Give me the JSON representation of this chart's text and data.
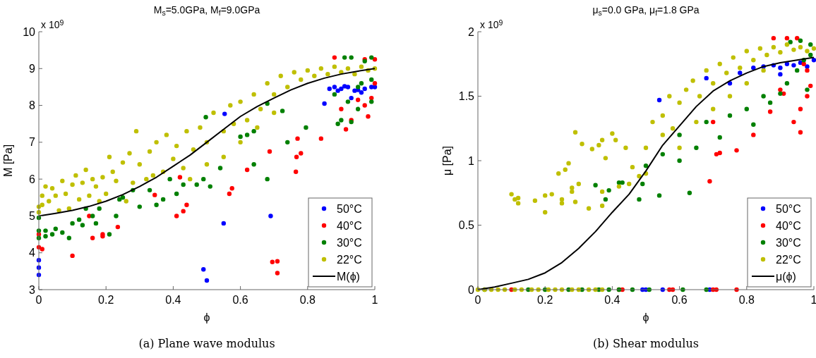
{
  "chart_data": [
    {
      "type": "scatter",
      "title": "M$_{s}$=5.0GPa, M$_{f}$=9.0GPa",
      "xlabel": "ϕ",
      "ylabel": "M [Pa]",
      "annotations": [
        "x 10$^{9}$",
        "(a) Plane wave modulus"
      ],
      "xlim": [
        0,
        1
      ],
      "ylim": [
        3,
        10
      ],
      "xticks": [
        0,
        0.2,
        0.4,
        0.6,
        0.8,
        1
      ],
      "yticks": [
        3,
        4,
        5,
        6,
        7,
        8,
        9,
        10
      ],
      "legend": "bottom right",
      "marker": "circle",
      "grid": false,
      "series": [
        {
          "name": "50°C",
          "color": "#0000ff",
          "x": [
            0,
            0,
            0,
            0.49,
            0.5,
            0.55,
            0.69,
            0.553,
            0.865,
            0.88,
            0.9,
            0.92,
            0.94,
            0.95,
            0.97,
            0.99,
            1.0,
            0.93,
            0.85,
            0.89,
            0.96,
            0.91
          ],
          "values": [
            3.4,
            3.6,
            3.8,
            3.55,
            3.25,
            4.8,
            5.0,
            7.77,
            8.45,
            8.5,
            8.45,
            8.5,
            8.4,
            8.42,
            8.45,
            8.5,
            8.5,
            8.2,
            8.05,
            8.4,
            8.35,
            8.52
          ]
        },
        {
          "name": "40°C",
          "color": "#ff0000",
          "x": [
            0,
            0,
            0.01,
            0.1,
            0.15,
            0.16,
            0.19,
            0.19,
            0.235,
            0.345,
            0.41,
            0.43,
            0.44,
            0.42,
            0.567,
            0.575,
            0.695,
            0.71,
            0.71,
            0.687,
            0.767,
            0.78,
            0.77,
            0.84,
            0.914,
            0.9,
            0.62,
            0.765,
            0.88,
            0.98,
            0.99,
            0.97,
            0.93,
            0.95,
            0.97,
            1.0,
            1.0
          ],
          "values": [
            4.5,
            4.15,
            4.1,
            3.92,
            5.0,
            4.4,
            4.5,
            4.45,
            4.7,
            5.57,
            5.0,
            5.13,
            5.3,
            6.05,
            5.6,
            5.75,
            3.75,
            3.77,
            3.45,
            6.75,
            6.6,
            6.7,
            7.1,
            7.1,
            7.35,
            7.9,
            6.25,
            6.2,
            9.3,
            7.7,
            8.2,
            8.0,
            7.6,
            8.15,
            9.25,
            9.25,
            8.6
          ]
        },
        {
          "name": "30°C",
          "color": "#008000",
          "x": [
            0,
            0,
            0,
            0.02,
            0.02,
            0.04,
            0.05,
            0.07,
            0.09,
            0.1,
            0.12,
            0.13,
            0.14,
            0.16,
            0.17,
            0.18,
            0.21,
            0.23,
            0.24,
            0.25,
            0.28,
            0.3,
            0.33,
            0.35,
            0.37,
            0.39,
            0.41,
            0.43,
            0.47,
            0.49,
            0.51,
            0.68,
            0.497,
            0.54,
            0.64,
            0.74,
            0.795,
            0.89,
            0.9,
            0.93,
            0.95,
            0.92,
            0.96,
            0.99,
            0.99,
            0.97,
            0.93,
            0.91,
            0.95,
            0.99,
            0.68,
            0.64,
            0.62,
            0.6,
            0.725,
            0.88
          ],
          "values": [
            4.95,
            4.6,
            4.4,
            4.6,
            4.45,
            4.5,
            4.65,
            4.55,
            4.4,
            4.8,
            4.9,
            4.75,
            5.2,
            5.0,
            4.8,
            5.2,
            4.5,
            5.0,
            5.45,
            5.5,
            5.7,
            5.25,
            5.7,
            5.3,
            5.45,
            6.0,
            5.6,
            5.85,
            5.85,
            6.0,
            5.8,
            6.0,
            7.68,
            6.3,
            6.4,
            7.0,
            7.4,
            7.5,
            7.6,
            7.55,
            7.9,
            8.1,
            8.6,
            8.7,
            9.3,
            9.2,
            9.3,
            9.3,
            8.5,
            8.1,
            8.05,
            7.3,
            7.2,
            7.15,
            7.85,
            8.3
          ]
        },
        {
          "name": "22°C",
          "color": "#bfbf00",
          "x": [
            0,
            0,
            0.01,
            0.01,
            0.02,
            0.03,
            0.04,
            0.05,
            0.06,
            0.07,
            0.08,
            0.09,
            0.1,
            0.11,
            0.12,
            0.13,
            0.14,
            0.15,
            0.16,
            0.17,
            0.18,
            0.19,
            0.2,
            0.21,
            0.22,
            0.23,
            0.25,
            0.26,
            0.27,
            0.28,
            0.29,
            0.3,
            0.32,
            0.33,
            0.34,
            0.35,
            0.37,
            0.38,
            0.4,
            0.41,
            0.43,
            0.44,
            0.46,
            0.48,
            0.5,
            0.52,
            0.55,
            0.57,
            0.58,
            0.6,
            0.62,
            0.64,
            0.66,
            0.68,
            0.7,
            0.72,
            0.74,
            0.76,
            0.78,
            0.8,
            0.82,
            0.84,
            0.86,
            0.88,
            0.9,
            0.92,
            0.94,
            0.96,
            0.98,
            1.0,
            0.5,
            0.45,
            0.6,
            0.65,
            0.7,
            0.55
          ],
          "values": [
            5.1,
            5.25,
            5.55,
            5.3,
            5.8,
            5.4,
            5.75,
            5.55,
            5.15,
            5.95,
            5.6,
            5.2,
            5.85,
            6.1,
            5.45,
            5.9,
            6.25,
            5.55,
            6.0,
            5.8,
            5.4,
            6.05,
            5.6,
            6.6,
            6.2,
            5.95,
            6.45,
            5.4,
            6.7,
            5.9,
            7.3,
            6.4,
            6.0,
            6.75,
            6.1,
            7.0,
            6.2,
            7.2,
            6.55,
            6.9,
            6.3,
            7.3,
            6.8,
            7.4,
            7.0,
            7.8,
            7.3,
            8.0,
            7.5,
            8.1,
            7.6,
            8.3,
            7.9,
            8.6,
            8.3,
            8.8,
            8.5,
            8.9,
            8.7,
            8.95,
            8.8,
            9.0,
            8.85,
            9.05,
            8.9,
            9.0,
            8.85,
            9.05,
            8.95,
            9.0,
            6.4,
            6.0,
            7.0,
            7.4,
            7.8,
            6.6
          ]
        },
        {
          "name": "M(ϕ)",
          "type": "line",
          "marker": "none",
          "color": "#000000",
          "x": [
            0,
            0.05,
            0.1,
            0.15,
            0.2,
            0.25,
            0.3,
            0.35,
            0.4,
            0.45,
            0.5,
            0.55,
            0.6,
            0.65,
            0.7,
            0.75,
            0.8,
            0.85,
            0.9,
            0.95,
            1
          ],
          "values": [
            5.0,
            5.07,
            5.15,
            5.26,
            5.4,
            5.58,
            5.8,
            6.05,
            6.35,
            6.65,
            7.0,
            7.35,
            7.7,
            7.97,
            8.2,
            8.42,
            8.6,
            8.74,
            8.85,
            8.93,
            9.0
          ]
        }
      ]
    },
    {
      "type": "scatter",
      "title": "μ$_{s}$=0.0 GPa, μ$_{f}$=1.8 GPa",
      "xlabel": "ϕ",
      "ylabel": "μ [Pa]",
      "annotations": [
        "x 10$^{9}$",
        "(b) Shear modulus"
      ],
      "xlim": [
        0,
        1
      ],
      "ylim": [
        0,
        2
      ],
      "xticks": [
        0,
        0.2,
        0.4,
        0.6,
        0.8,
        1
      ],
      "yticks": [
        0,
        0.5,
        1,
        1.5,
        2
      ],
      "legend": "bottom right",
      "marker": "circle",
      "grid": false,
      "series": [
        {
          "name": "50°C",
          "color": "#0000ff",
          "x": [
            0.54,
            0.68,
            0.75,
            0.78,
            0.82,
            0.85,
            0.88,
            0.9,
            0.9,
            0.92,
            0.94,
            0.96,
            0.98,
            1.0,
            0.49,
            0.5,
            0.55,
            0.69
          ],
          "values": [
            1.47,
            1.64,
            1.6,
            1.68,
            1.72,
            1.73,
            1.74,
            1.72,
            1.67,
            1.75,
            1.74,
            1.76,
            1.73,
            1.78,
            0,
            0,
            0,
            0
          ]
        },
        {
          "name": "40°C",
          "color": "#ff0000",
          "x": [
            0.69,
            0.71,
            0.72,
            0.7,
            0.77,
            0.82,
            0.87,
            0.9,
            0.91,
            0.94,
            0.96,
            0.98,
            0.99,
            0.96,
            0.98,
            0.97,
            0.92,
            0.88,
            0.95,
            0.1,
            0.42,
            0.43,
            0.57,
            0.58,
            0.7,
            0.71,
            0.77
          ],
          "values": [
            0.84,
            1.05,
            1.06,
            1.3,
            1.08,
            1.2,
            1.38,
            1.55,
            1.52,
            1.3,
            1.4,
            1.5,
            1.58,
            1.22,
            1.7,
            1.75,
            1.95,
            1.95,
            1.95,
            0,
            0,
            0,
            0,
            0,
            0,
            0,
            0
          ]
        },
        {
          "name": "30°C",
          "color": "#008000",
          "x": [
            0.35,
            0.38,
            0.39,
            0.42,
            0.43,
            0.48,
            0.49,
            0.54,
            0.63,
            0.5,
            0.55,
            0.6,
            0.6,
            0.65,
            0.68,
            0.72,
            0.75,
            0.8,
            0.82,
            0.85,
            0.87,
            0.9,
            0.92,
            0.95,
            0.97,
            0.99,
            0.96,
            0.93,
            0.99,
            0.98,
            0.02,
            0.15,
            0.2,
            0.27,
            0.31,
            0.36,
            0.39,
            0.42,
            0.46,
            0.51,
            0.61,
            0.68
          ],
          "values": [
            0.81,
            0.7,
            0.77,
            0.83,
            0.83,
            0.7,
            0.82,
            0.73,
            0.75,
            0.96,
            1.05,
            1.0,
            1.2,
            1.1,
            1.3,
            1.18,
            1.35,
            1.4,
            1.28,
            1.5,
            1.45,
            1.52,
            1.6,
            1.7,
            1.78,
            1.82,
            1.93,
            1.92,
            1.9,
            1.55,
            0,
            0,
            0,
            0,
            0,
            0,
            0,
            0,
            0,
            0,
            0,
            0
          ]
        },
        {
          "name": "22°C",
          "color": "#bfbf00",
          "x": [
            0.1,
            0.11,
            0.12,
            0.12,
            0.17,
            0.2,
            0.2,
            0.22,
            0.25,
            0.25,
            0.28,
            0.28,
            0.29,
            0.33,
            0.37,
            0.37,
            0.24,
            0.26,
            0.27,
            0.29,
            0.31,
            0.34,
            0.36,
            0.37,
            0.38,
            0.4,
            0.41,
            0.44,
            0.46,
            0.5,
            0.52,
            0.55,
            0.57,
            0.6,
            0.62,
            0.64,
            0.66,
            0.68,
            0.7,
            0.72,
            0.74,
            0.76,
            0.78,
            0.8,
            0.82,
            0.84,
            0.86,
            0.88,
            0.9,
            0.92,
            0.94,
            0.96,
            0.98,
            1.0,
            0.45,
            0.5,
            0.55,
            0.58,
            0.6,
            0.65,
            0.7,
            0.75,
            0.8,
            0.85,
            0.42,
            0.48,
            0.3,
            0,
            0.02,
            0.04,
            0.06,
            0.08,
            0.11,
            0.13,
            0.16,
            0.18,
            0.21,
            0.23,
            0.25,
            0.28,
            0.3,
            0.33,
            0.35,
            0.37
          ],
          "values": [
            0.74,
            0.7,
            0.71,
            0.67,
            0.69,
            0.6,
            0.73,
            0.74,
            0.7,
            0.67,
            0.76,
            0.79,
            0.68,
            0.63,
            0.65,
            0.76,
            0.9,
            0.93,
            0.98,
            1.22,
            1.13,
            1.09,
            1.12,
            1.16,
            1.02,
            1.21,
            1.16,
            1.1,
            0.95,
            0.9,
            1.3,
            1.35,
            1.5,
            1.45,
            1.55,
            1.62,
            1.5,
            1.7,
            1.6,
            1.75,
            1.68,
            1.8,
            1.72,
            1.85,
            1.78,
            1.87,
            1.82,
            1.88,
            1.84,
            1.9,
            1.86,
            1.88,
            1.85,
            1.87,
            0.82,
            1.1,
            1.2,
            1.25,
            1.1,
            1.3,
            1.4,
            1.5,
            1.6,
            1.7,
            0.8,
            0.88,
            0.82,
            0,
            0,
            0,
            0,
            0,
            0,
            0,
            0,
            0,
            0,
            0,
            0,
            0,
            0,
            0,
            0,
            0
          ]
        },
        {
          "name": "μ(ϕ)",
          "type": "line",
          "marker": "none",
          "color": "#000000",
          "x": [
            0,
            0.05,
            0.1,
            0.15,
            0.2,
            0.25,
            0.3,
            0.35,
            0.4,
            0.45,
            0.5,
            0.55,
            0.6,
            0.65,
            0.7,
            0.75,
            0.8,
            0.85,
            0.9,
            0.95,
            1
          ],
          "values": [
            0,
            0.02,
            0.05,
            0.08,
            0.13,
            0.21,
            0.32,
            0.45,
            0.6,
            0.74,
            0.92,
            1.12,
            1.27,
            1.42,
            1.54,
            1.62,
            1.68,
            1.73,
            1.76,
            1.78,
            1.8
          ]
        }
      ]
    }
  ]
}
